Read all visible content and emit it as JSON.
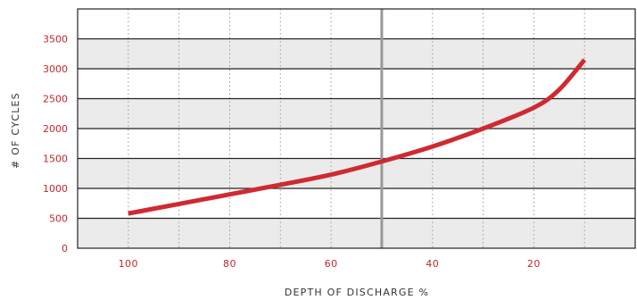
{
  "chart_data": {
    "type": "line",
    "title": "",
    "xlabel": "DEPTH OF DISCHARGE %",
    "ylabel": "# OF CYCLES",
    "x_reversed": true,
    "xlim": [
      110,
      0
    ],
    "ylim": [
      0,
      4000
    ],
    "x_ticks": [
      100,
      80,
      60,
      40,
      20
    ],
    "y_ticks": [
      0,
      500,
      1000,
      1500,
      2000,
      2500,
      3000,
      3500
    ],
    "x_minor_gridlines": [
      100,
      90,
      80,
      70,
      60,
      40,
      30,
      20,
      10
    ],
    "reference_line_x": 50,
    "banded_background": true,
    "legend": "none",
    "series": [
      {
        "color": "#cf2a31",
        "x": [
          100,
          90,
          80,
          70,
          60,
          50,
          40,
          30,
          20,
          15,
          10
        ],
        "y": [
          580,
          740,
          900,
          1060,
          1230,
          1450,
          1700,
          2000,
          2350,
          2650,
          3150
        ]
      }
    ]
  },
  "colors": {
    "band_gray": "#ebebeb",
    "band_white": "#ffffff",
    "gridline": "#222222",
    "vertical_dotted": "#999999",
    "reference_line": "#999999",
    "series_red": "#cf2a31",
    "tick_label_red": "#c0272d"
  }
}
